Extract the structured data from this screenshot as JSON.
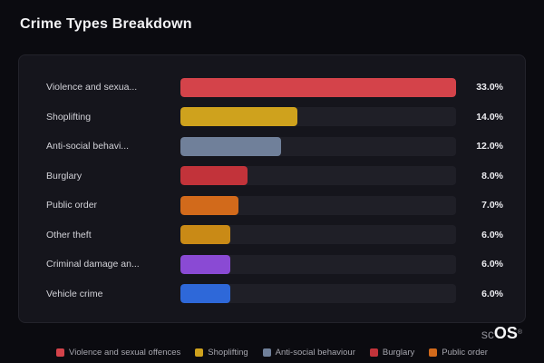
{
  "title": "Crime Types Breakdown",
  "logo": {
    "prefix": "sc",
    "suffix": "OS",
    "registered": "®"
  },
  "chart_data": {
    "type": "bar",
    "orientation": "horizontal",
    "title": "Crime Types Breakdown",
    "xlabel": "",
    "ylabel": "",
    "max_value": 33.0,
    "grid": false,
    "legend_position": "bottom",
    "categories": [
      "Violence and sexual offences",
      "Shoplifting",
      "Anti-social behaviour",
      "Burglary",
      "Public order",
      "Other theft",
      "Criminal damage and arson",
      "Vehicle crime"
    ],
    "display_labels": [
      "Violence and sexua...",
      "Shoplifting",
      "Anti-social behavi...",
      "Burglary",
      "Public order",
      "Other theft",
      "Criminal damage an...",
      "Vehicle crime"
    ],
    "values": [
      33.0,
      14.0,
      12.0,
      8.0,
      7.0,
      6.0,
      6.0,
      6.0
    ],
    "value_labels": [
      "33.0%",
      "14.0%",
      "12.0%",
      "8.0%",
      "7.0%",
      "6.0%",
      "6.0%",
      "6.0%"
    ],
    "colors": [
      "#d4434a",
      "#cfa21d",
      "#70809a",
      "#c2333a",
      "#d26a1b",
      "#c98a16",
      "#8a4ad4",
      "#2e68d9"
    ],
    "legend": [
      {
        "label": "Violence and sexual offences",
        "color": "#d4434a"
      },
      {
        "label": "Shoplifting",
        "color": "#cfa21d"
      },
      {
        "label": "Anti-social behaviour",
        "color": "#70809a"
      },
      {
        "label": "Burglary",
        "color": "#c2333a"
      },
      {
        "label": "Public order",
        "color": "#d26a1b"
      }
    ]
  }
}
